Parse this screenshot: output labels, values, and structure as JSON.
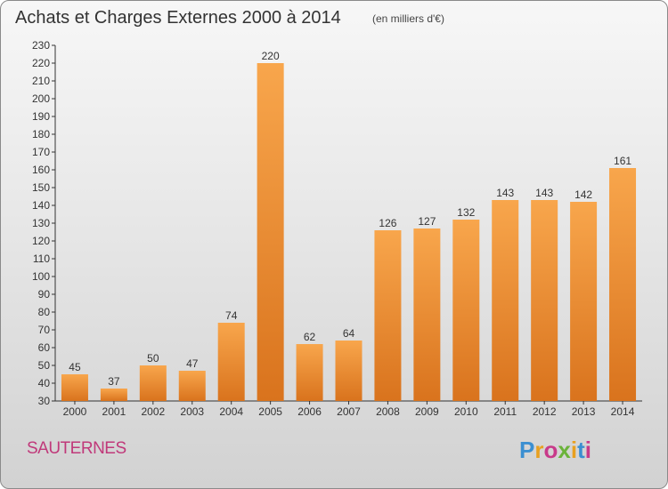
{
  "header": {
    "title": "Achats et Charges Externes 2000 à 2014",
    "subtitle": "(en milliers d'€)"
  },
  "footer": {
    "commune": "SAUTERNES",
    "logo_text": "Proxiti"
  },
  "colors": {
    "bar_light": "#f8a64c",
    "bar_dark": "#d9731d",
    "commune": "#c0397a"
  },
  "chart_data": {
    "type": "bar",
    "title": "Achats et Charges Externes 2000 à 2014",
    "subtitle": "(en milliers d'€)",
    "categories": [
      "2000",
      "2001",
      "2002",
      "2003",
      "2004",
      "2005",
      "2006",
      "2007",
      "2008",
      "2009",
      "2010",
      "2011",
      "2012",
      "2013",
      "2014"
    ],
    "values": [
      45,
      37,
      50,
      47,
      74,
      220,
      62,
      64,
      126,
      127,
      132,
      143,
      143,
      142,
      161
    ],
    "ylim": [
      30,
      230
    ],
    "yticks": [
      30,
      40,
      50,
      60,
      70,
      80,
      90,
      100,
      110,
      120,
      130,
      140,
      150,
      160,
      170,
      180,
      190,
      200,
      210,
      220,
      230
    ],
    "grid": false,
    "data_labels": true
  }
}
